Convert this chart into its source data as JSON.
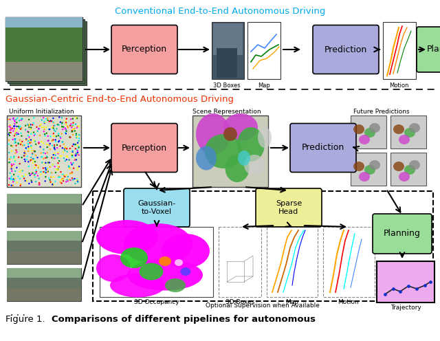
{
  "fig_width": 6.4,
  "fig_height": 4.96,
  "dpi": 100,
  "bg_color": "#ffffff",
  "title_conv": "Conventional End-to-End Autonomous Driving",
  "title_gauss": "Gaussian-Centric End-to-End Autonomous Driving",
  "caption_normal": "Figure 1.  ",
  "caption_bold": "Comparisons of different pipelines for autonomous",
  "color_perception": "#f4a0a0",
  "color_prediction": "#aaaadd",
  "color_planning": "#99dd99",
  "color_gauss2voxel": "#99ddee",
  "color_sparse_head": "#eeee99",
  "color_trajectory": "#eeaaee",
  "color_map_white": "#ffffff",
  "color_gray_img": "#aaaaaa"
}
